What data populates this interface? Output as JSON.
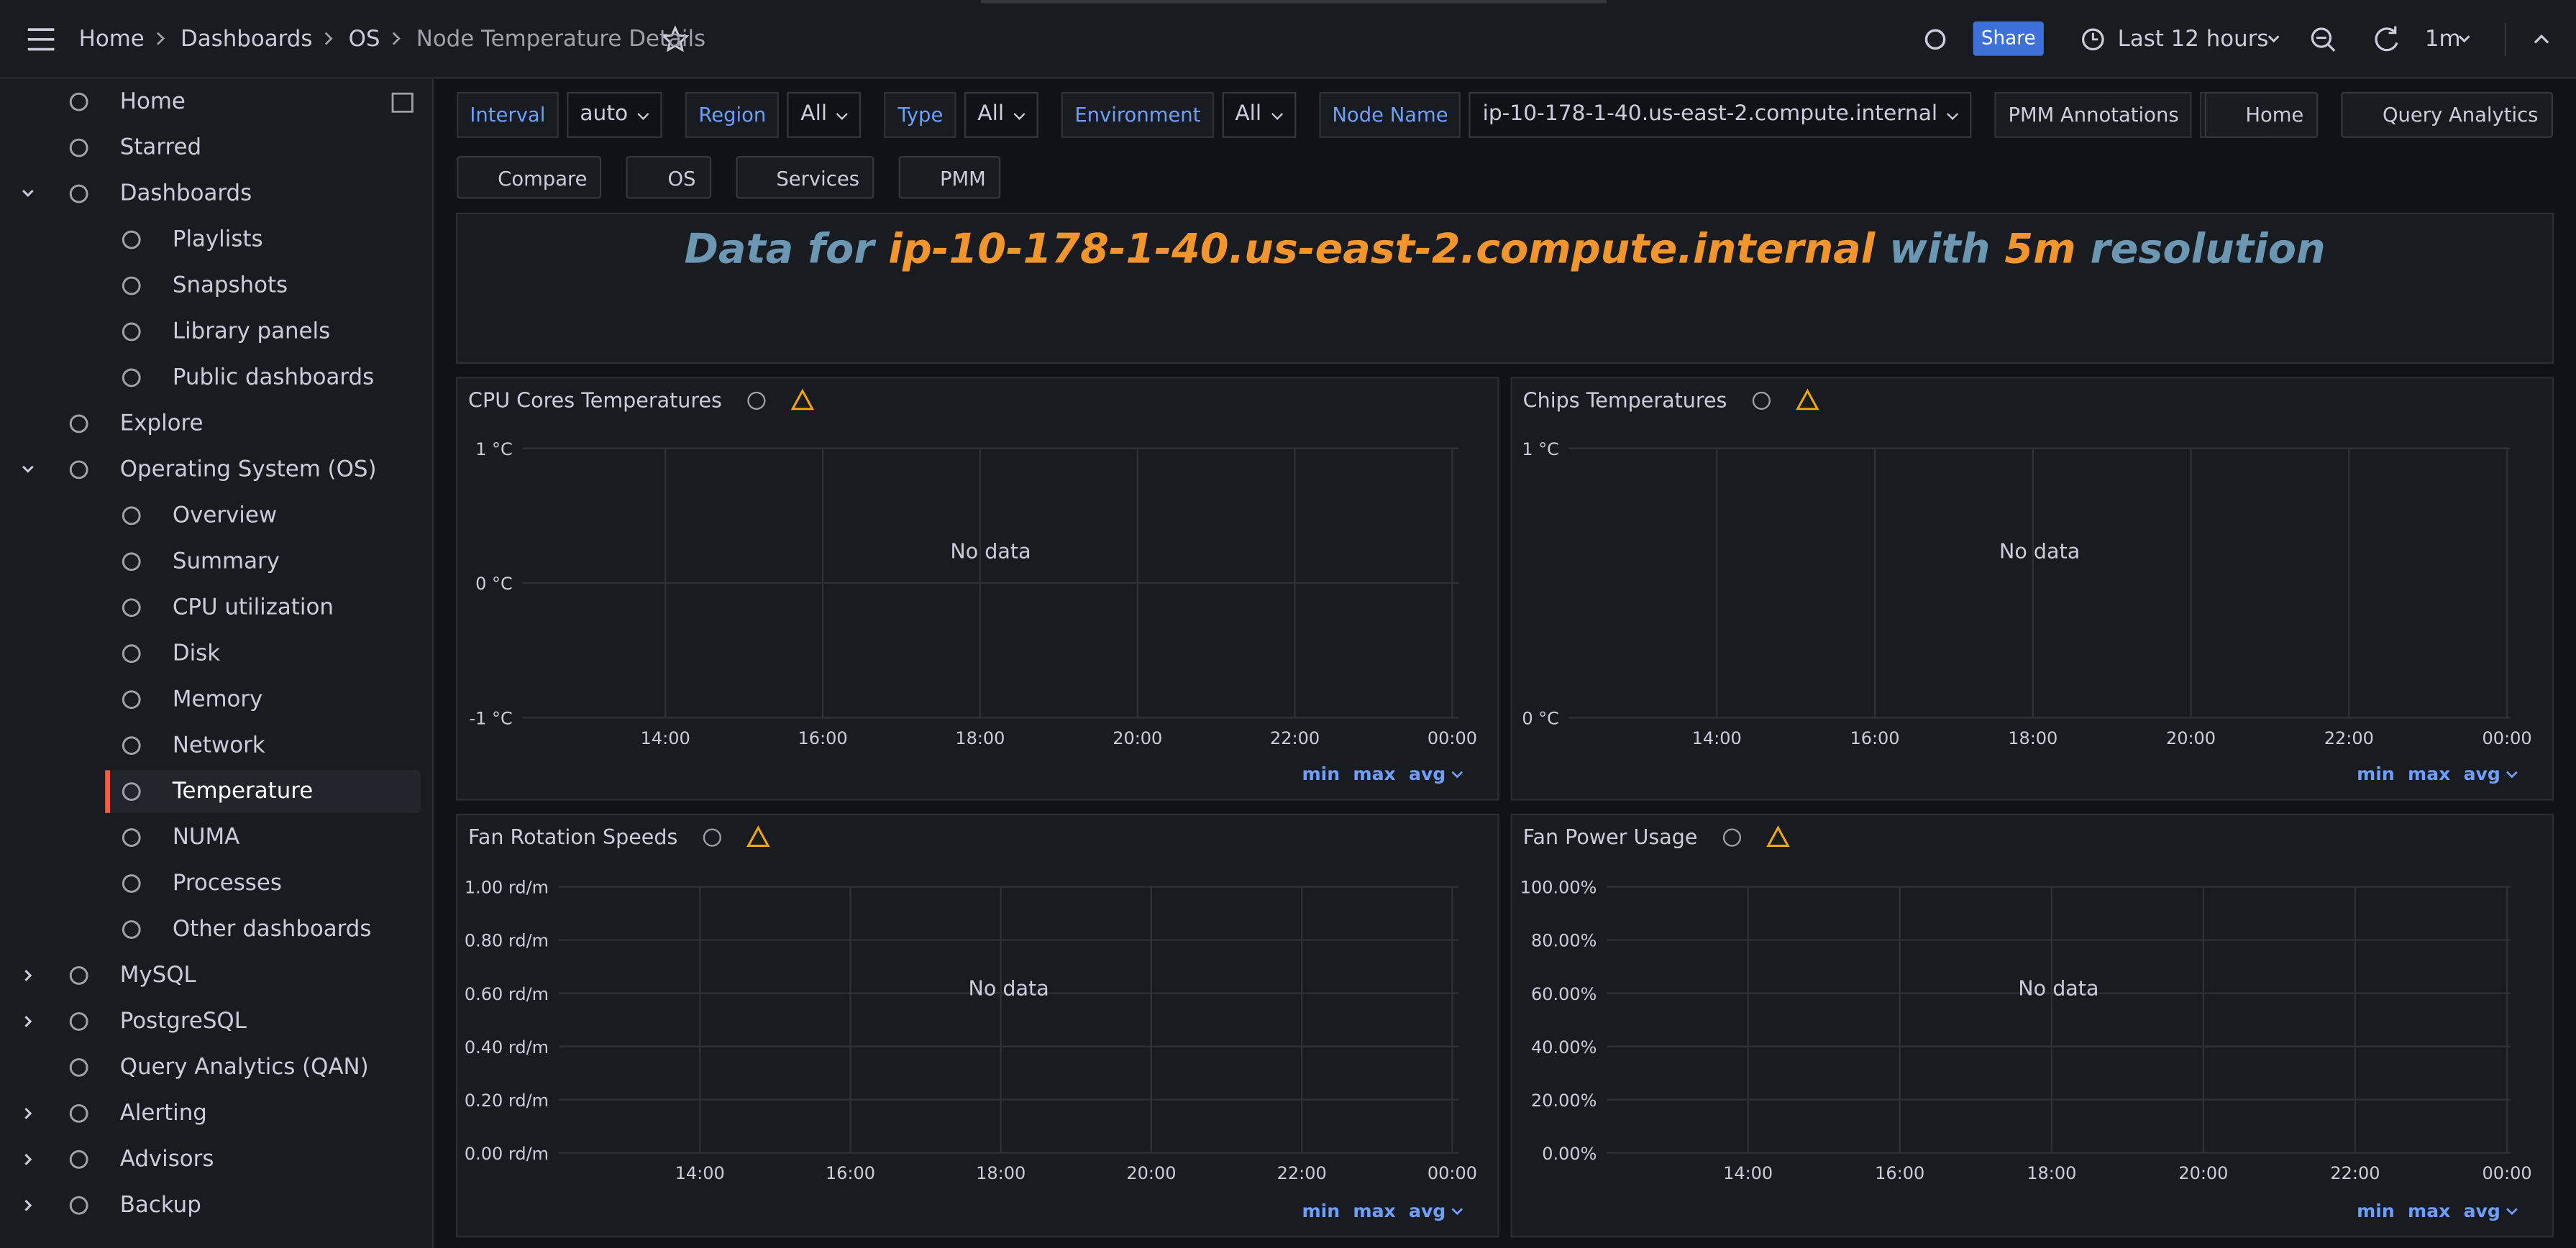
{
  "topbar": {
    "breadcrumbs": [
      "Home",
      "Dashboards",
      "OS",
      "Node Temperature Details"
    ],
    "share": "Share",
    "time_range": "Last 12 hours",
    "refresh": "1m"
  },
  "sidebar": {
    "items": [
      {
        "label": "Home"
      },
      {
        "label": "Starred"
      },
      {
        "label": "Dashboards",
        "children": [
          {
            "label": "Playlists"
          },
          {
            "label": "Snapshots"
          },
          {
            "label": "Library panels"
          },
          {
            "label": "Public dashboards"
          }
        ]
      },
      {
        "label": "Explore"
      },
      {
        "label": "Operating System (OS)",
        "children": [
          {
            "label": "Overview"
          },
          {
            "label": "Summary"
          },
          {
            "label": "CPU utilization"
          },
          {
            "label": "Disk"
          },
          {
            "label": "Memory"
          },
          {
            "label": "Network"
          },
          {
            "label": "Temperature"
          },
          {
            "label": "NUMA"
          },
          {
            "label": "Processes"
          },
          {
            "label": "Other dashboards"
          }
        ]
      },
      {
        "label": "MySQL"
      },
      {
        "label": "PostgreSQL"
      },
      {
        "label": "Query Analytics (QAN)"
      },
      {
        "label": "Alerting"
      },
      {
        "label": "Advisors"
      },
      {
        "label": "Backup"
      }
    ]
  },
  "variables": [
    {
      "label": "Interval",
      "value": "auto"
    },
    {
      "label": "Region",
      "value": "All"
    },
    {
      "label": "Type",
      "value": "All"
    },
    {
      "label": "Environment",
      "value": "All"
    },
    {
      "label": "Node Name",
      "value": "ip-10-178-1-40.us-east-2.compute.internal"
    }
  ],
  "annotations_toggle": "PMM Annotations",
  "links": [
    "Home",
    "Query Analytics"
  ],
  "buttons": [
    "Compare",
    "OS",
    "Services",
    "PMM"
  ],
  "banner": [
    "Data for",
    "ip-10-178-1-40.us-east-2.compute.internal",
    "with",
    "5m",
    "resolution"
  ],
  "panels": [
    {
      "title": "CPU Cores Temperatures",
      "message": "No data",
      "yticks": [
        "-1 °C",
        "0 °C",
        "1 °C"
      ],
      "xticks": [
        "14:00",
        "16:00",
        "18:00",
        "20:00",
        "22:00",
        "00:00"
      ],
      "legend": [
        "min",
        "max",
        "avg"
      ]
    },
    {
      "title": "Chips Temperatures",
      "message": "No data",
      "yticks": [
        "0 °C",
        "1 °C"
      ],
      "xticks": [
        "14:00",
        "16:00",
        "18:00",
        "20:00",
        "22:00",
        "00:00"
      ],
      "legend": [
        "min",
        "max",
        "avg"
      ]
    },
    {
      "title": "Fan Rotation Speeds",
      "message": "No data",
      "yticks": [
        "0.00 rd/m",
        "0.20 rd/m",
        "0.40 rd/m",
        "0.60 rd/m",
        "0.80 rd/m",
        "1.00 rd/m"
      ],
      "xticks": [
        "14:00",
        "16:00",
        "18:00",
        "20:00",
        "22:00",
        "00:00"
      ],
      "legend": [
        "min",
        "max",
        "avg"
      ]
    },
    {
      "title": "Fan Power Usage",
      "message": "No data",
      "yticks": [
        "0.00%",
        "20.00%",
        "40.00%",
        "60.00%",
        "80.00%",
        "100.00%"
      ],
      "xticks": [
        "14:00",
        "16:00",
        "18:00",
        "20:00",
        "22:00",
        "00:00"
      ],
      "legend": [
        "min",
        "max",
        "avg"
      ]
    }
  ]
}
